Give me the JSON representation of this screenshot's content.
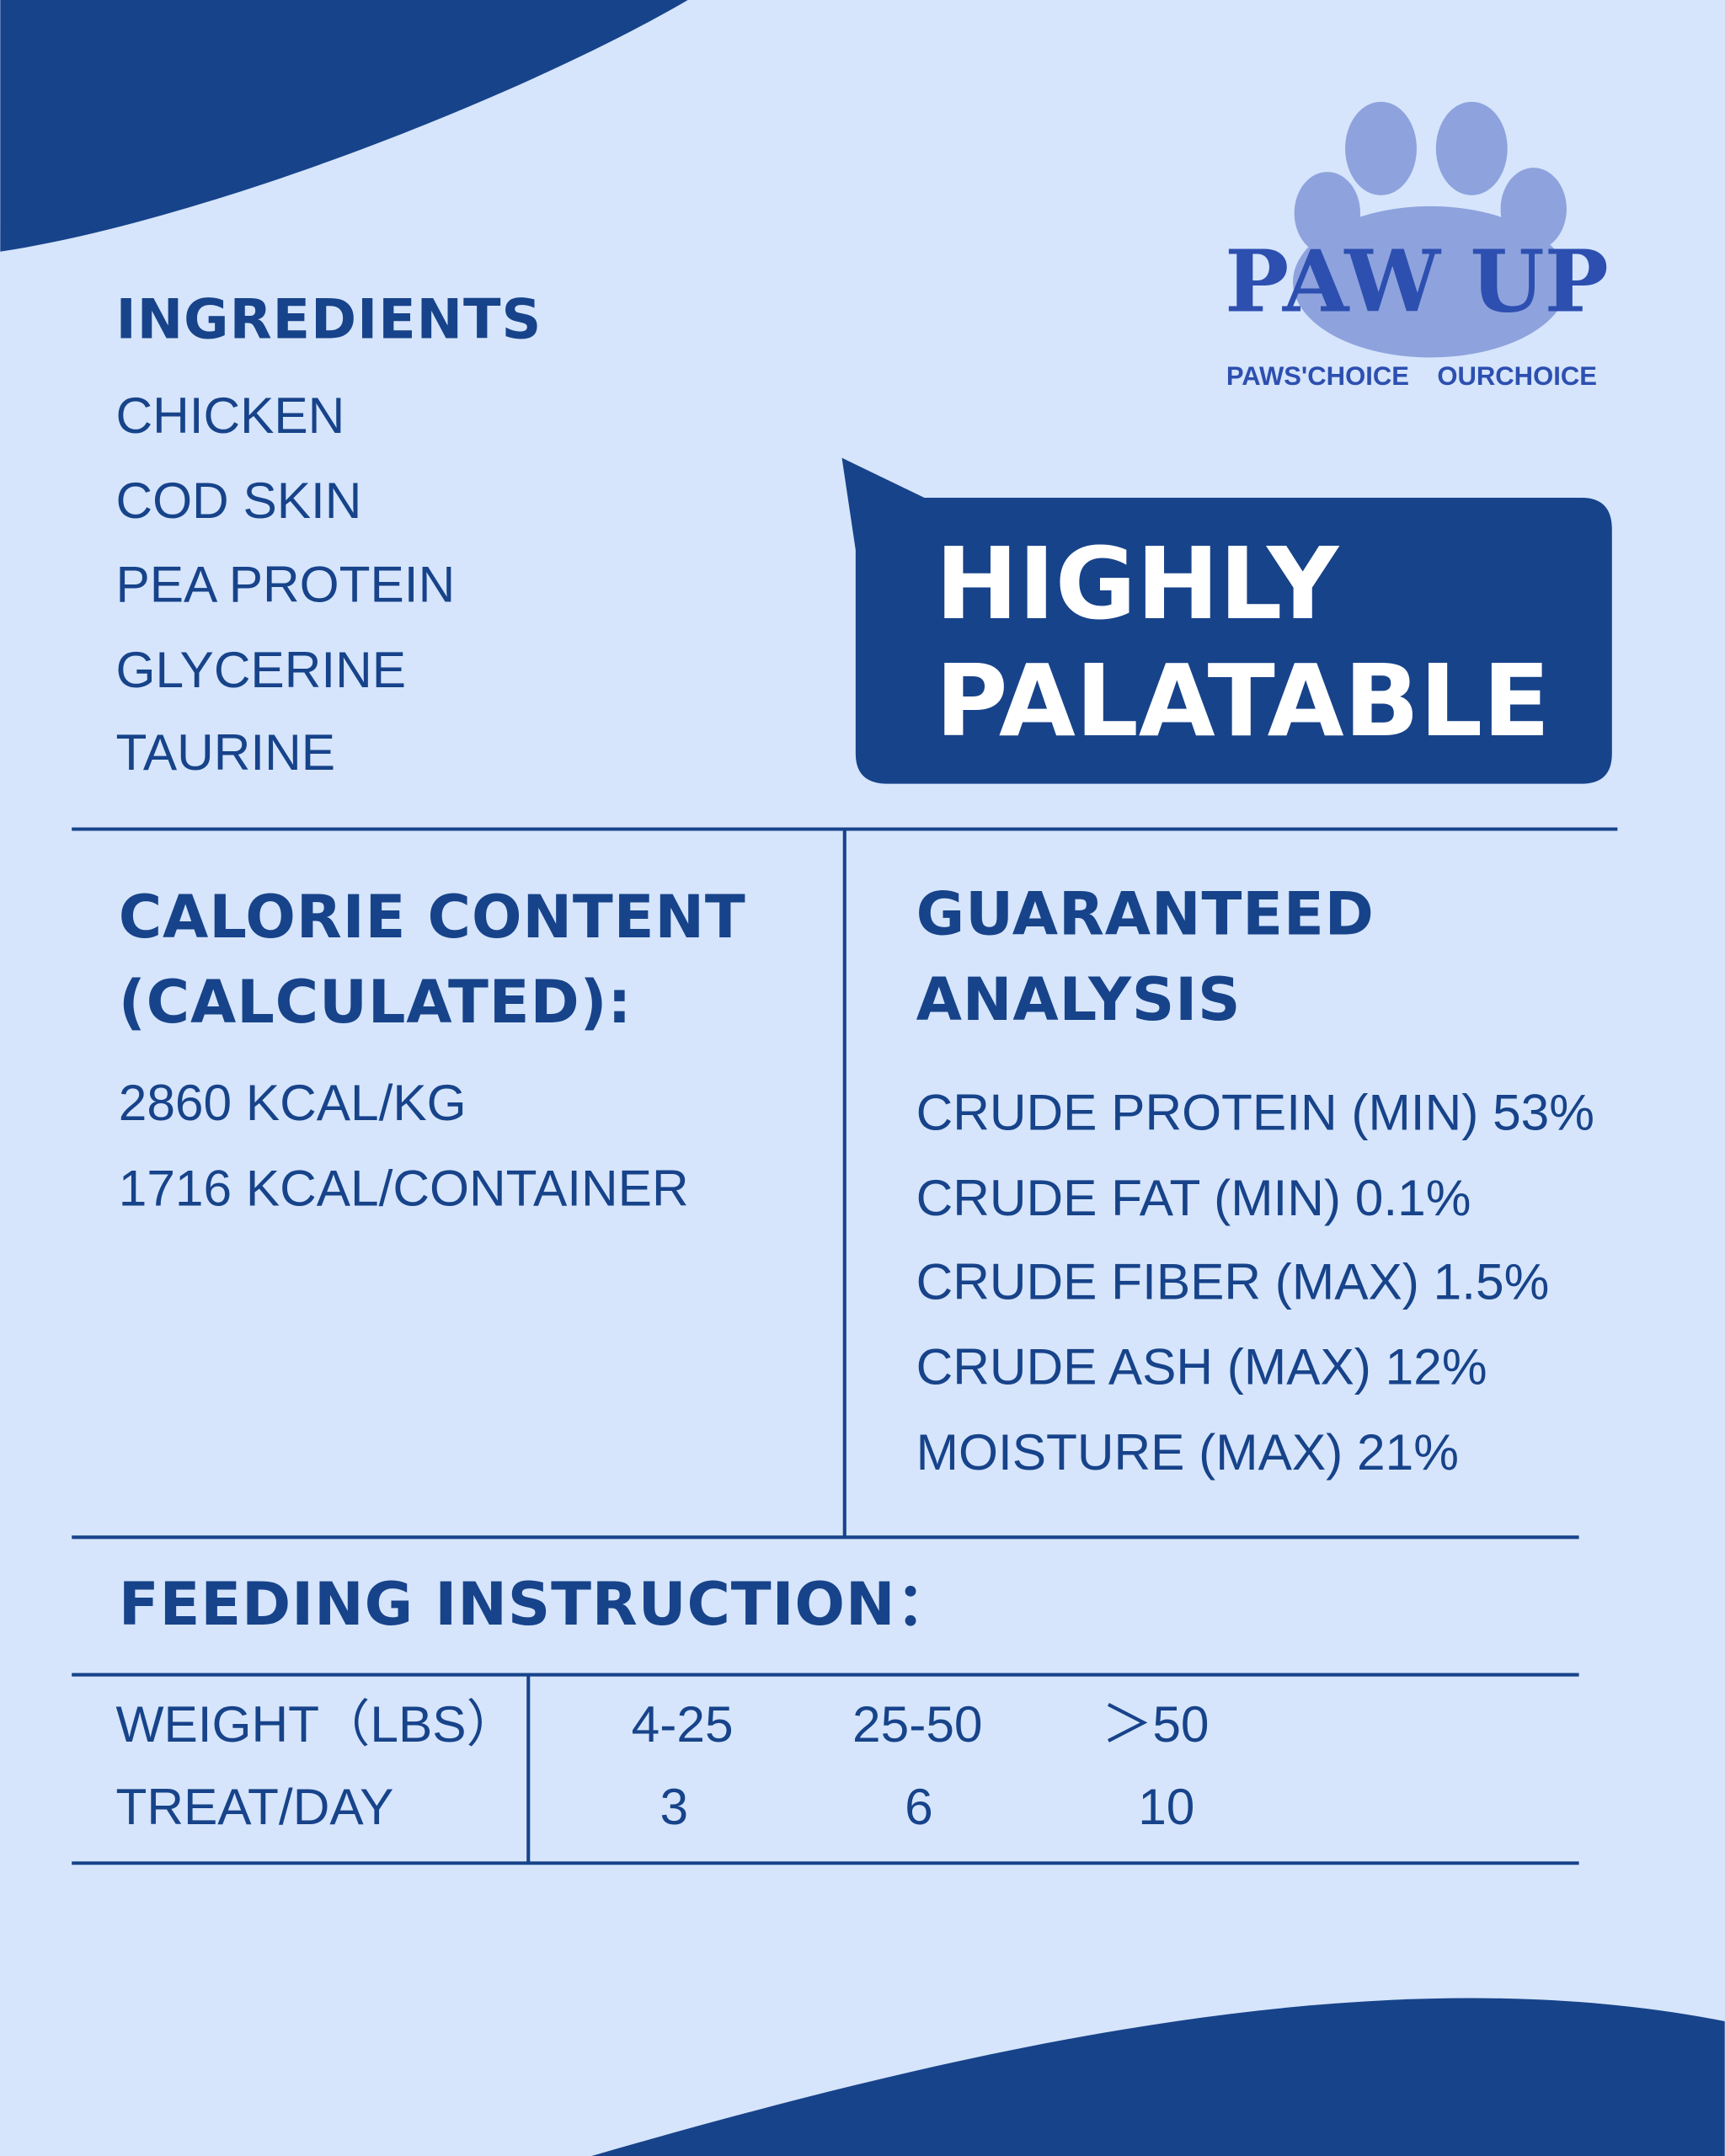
{
  "logo": {
    "brand": "PAW UP",
    "tagline_left": "PAWS'CHOICE",
    "tagline_right": "OURCHOICE"
  },
  "ingredients": {
    "title": "INGREDIENTS",
    "items": [
      "CHICKEN",
      "COD SKIN",
      "PEA PROTEIN",
      "GLYCERINE",
      "TAURINE"
    ]
  },
  "badge": {
    "lines": [
      "HIGHLY",
      "PALATABLE"
    ]
  },
  "calorie_content": {
    "title_lines": [
      "CALORIE CONTENT",
      "(CALCULATED):"
    ],
    "items": [
      "2860 KCAL/KG",
      "1716 KCAL/CONTAINER"
    ]
  },
  "guaranteed_analysis": {
    "title_lines": [
      "GUARANTEED",
      "ANALYSIS"
    ],
    "items": [
      "CRUDE PROTEIN (MIN) 53%",
      "CRUDE FAT (MIN) 0.1%",
      "CRUDE FIBER (MAX) 1.5%",
      "CRUDE ASH (MAX) 12%",
      "MOISTURE (MAX) 21%"
    ]
  },
  "feeding_instruction": {
    "title": "FEEDING INSTRUCTION：",
    "table": {
      "rows": [
        [
          "WEIGHT（LBS）",
          "4-25",
          "25-50",
          "＞50"
        ],
        [
          "TREAT/DAY",
          "3",
          "6",
          "10"
        ]
      ]
    }
  }
}
